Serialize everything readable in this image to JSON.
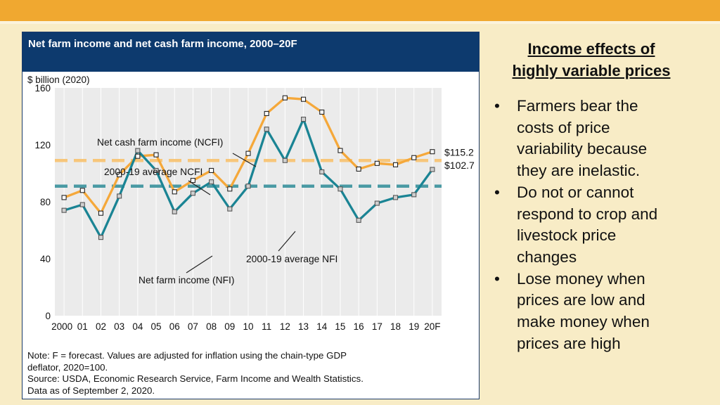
{
  "figure": {
    "title": "Net farm income and net cash farm income, 2000–20F",
    "note_lines": [
      "Note: F = forecast. Values are adjusted for inflation using the chain-type GDP",
      "deflator, 2020=100.",
      "Source: USDA, Economic Research Service, Farm Income and Wealth Statistics.",
      "Data as of September 2, 2020."
    ]
  },
  "chart_data": {
    "type": "line",
    "unit_label": "$ billion (2020)",
    "ylim": [
      0,
      160
    ],
    "yticks": [
      0,
      40,
      80,
      120,
      160
    ],
    "grid": "vertical",
    "categories": [
      "2000",
      "01",
      "02",
      "03",
      "04",
      "05",
      "06",
      "07",
      "08",
      "09",
      "10",
      "11",
      "12",
      "13",
      "14",
      "15",
      "16",
      "17",
      "18",
      "19",
      "20F"
    ],
    "series": [
      {
        "name": "Net cash farm income (NCFI)",
        "color": "#f5a83a",
        "values": [
          83,
          88,
          72,
          99,
          112,
          113,
          87,
          95,
          102,
          89,
          114,
          142,
          153,
          152,
          143,
          116,
          103,
          107,
          106,
          111,
          115.2
        ]
      },
      {
        "name": "Net farm income (NFI)",
        "color": "#1a8494",
        "values": [
          74,
          78,
          55,
          84,
          116,
          102,
          73,
          86,
          94,
          75,
          91,
          131,
          109,
          138,
          101,
          89,
          67,
          79,
          83,
          85,
          102.7
        ]
      }
    ],
    "averages": [
      {
        "name": "2000-19 average NCFI",
        "value": 109,
        "color": "#f7c67a"
      },
      {
        "name": "2000-19 average NFI",
        "value": 91,
        "color": "#4a9aa4"
      }
    ],
    "end_labels": [
      "$115.2",
      "$102.7"
    ]
  },
  "side": {
    "title_lines": [
      "Income effects of",
      "highly variable prices"
    ],
    "bullets": [
      {
        "lines": [
          "Farmers bear the",
          "costs of price",
          "variability because",
          "they are inelastic."
        ]
      },
      {
        "lines": [
          "Do not or cannot",
          "respond to crop and",
          "livestock price",
          "changes"
        ]
      },
      {
        "lines": [
          "Lose money when",
          "prices are low and",
          "make money when",
          "prices are high"
        ]
      }
    ]
  }
}
